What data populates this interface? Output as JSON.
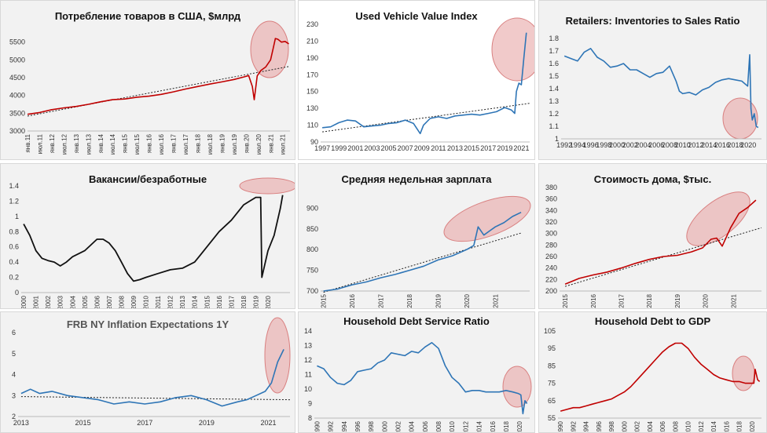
{
  "chart_data": [
    {
      "id": "p1",
      "type": "line",
      "title": "Потребление товаров в США, $млрд",
      "color": "#c00000",
      "trend": true,
      "highlight_color": "#e8a6a6",
      "x_ticks": [
        "янв.11",
        "июл.11",
        "янв.12",
        "июл.12",
        "янв.13",
        "июл.13",
        "янв.14",
        "июл.14",
        "янв.15",
        "июл.15",
        "янв.16",
        "июл.16",
        "янв.17",
        "июл.17",
        "янв.18",
        "июл.18",
        "янв.19",
        "июл.19",
        "янв.20",
        "июл.20",
        "янв.21",
        "июл.21"
      ],
      "x_tick_pos": [
        2011,
        2011.5,
        2012,
        2012.5,
        2013,
        2013.5,
        2014,
        2014.5,
        2015,
        2015.5,
        2016,
        2016.5,
        2017,
        2017.5,
        2018,
        2018.5,
        2019,
        2019.5,
        2020,
        2020.5,
        2021,
        2021.5
      ],
      "xlim": [
        2011,
        2021.8
      ],
      "ylim": [
        3000,
        6000
      ],
      "y_ticks": [
        3000,
        3500,
        4000,
        4500,
        5000,
        5500
      ],
      "x": [
        2011,
        2011.5,
        2012,
        2012.5,
        2013,
        2013.5,
        2014,
        2014.5,
        2015,
        2015.5,
        2016,
        2016.5,
        2017,
        2017.5,
        2018,
        2018.5,
        2019,
        2019.5,
        2019.9,
        2020.1,
        2020.25,
        2020.33,
        2020.45,
        2020.6,
        2020.8,
        2021.0,
        2021.1,
        2021.2,
        2021.3,
        2021.45,
        2021.6,
        2021.75
      ],
      "y": [
        3470,
        3520,
        3600,
        3650,
        3690,
        3750,
        3820,
        3880,
        3900,
        3950,
        3980,
        4030,
        4100,
        4180,
        4250,
        4320,
        4380,
        4450,
        4520,
        4560,
        4250,
        3880,
        4550,
        4700,
        4800,
        5000,
        5300,
        5600,
        5580,
        5500,
        5520,
        5450
      ],
      "trend_start": [
        2011,
        3420
      ],
      "trend_end": [
        2021.8,
        4820
      ]
    },
    {
      "id": "p2",
      "type": "line",
      "title": "Used Vehicle Value Index",
      "color": "#2e75b6",
      "trend": true,
      "highlight_color": "#e8a6a6",
      "x_ticks": [
        "1997",
        "1999",
        "2001",
        "2003",
        "2005",
        "2007",
        "2009",
        "2011",
        "2013",
        "2015",
        "2017",
        "2019",
        "2021"
      ],
      "x_tick_pos": [
        1997,
        1999,
        2001,
        2003,
        2005,
        2007,
        2009,
        2011,
        2013,
        2015,
        2017,
        2019,
        2021
      ],
      "xlim": [
        1996.8,
        2022
      ],
      "ylim": [
        90,
        230
      ],
      "y_ticks": [
        90,
        110,
        130,
        150,
        170,
        190,
        210,
        230
      ],
      "x": [
        1997,
        1998,
        1999,
        2000,
        2001,
        2002,
        2003,
        2004,
        2005,
        2006,
        2007,
        2008,
        2008.8,
        2009.2,
        2010,
        2011,
        2012,
        2013,
        2014,
        2015,
        2016,
        2017,
        2018,
        2019,
        2019.8,
        2020.2,
        2020.4,
        2020.7,
        2021,
        2021.3,
        2021.6
      ],
      "y": [
        107,
        108,
        113,
        116,
        115,
        108,
        109,
        110,
        112,
        113,
        116,
        112,
        100,
        110,
        118,
        120,
        118,
        121,
        122,
        123,
        122,
        124,
        126,
        131,
        128,
        124,
        150,
        160,
        158,
        190,
        220
      ],
      "trend_start": [
        1997,
        102
      ],
      "trend_end": [
        2022,
        136
      ]
    },
    {
      "id": "p3",
      "type": "line",
      "title": "Retailers: Inventories to Sales Ratio",
      "color": "#2e75b6",
      "trend": false,
      "highlight_color": "#e8a6a6",
      "x_ticks": [
        "1992",
        "1994",
        "1996",
        "1998",
        "2000",
        "2002",
        "2004",
        "2006",
        "2008",
        "2010",
        "2012",
        "2014",
        "2016",
        "2018",
        "2020"
      ],
      "x_tick_pos": [
        1992,
        1994,
        1996,
        1998,
        2000,
        2002,
        2004,
        2006,
        2008,
        2010,
        2012,
        2014,
        2016,
        2018,
        2020
      ],
      "xlim": [
        1991.5,
        2022
      ],
      "ylim": [
        1.0,
        1.85
      ],
      "y_ticks": [
        1.0,
        1.1,
        1.2,
        1.3,
        1.4,
        1.5,
        1.6,
        1.7,
        1.8
      ],
      "x": [
        1992,
        1993,
        1994,
        1995,
        1996,
        1997,
        1998,
        1999,
        2000,
        2001,
        2002,
        2003,
        2004,
        2005,
        2006,
        2007,
        2008,
        2009,
        2009.5,
        2010,
        2011,
        2012,
        2013,
        2014,
        2015,
        2016,
        2017,
        2018,
        2019,
        2019.9,
        2020.2,
        2020.4,
        2020.6,
        2020.9,
        2021.2,
        2021.5
      ],
      "y": [
        1.66,
        1.64,
        1.62,
        1.69,
        1.72,
        1.65,
        1.62,
        1.57,
        1.58,
        1.6,
        1.55,
        1.55,
        1.52,
        1.49,
        1.52,
        1.53,
        1.58,
        1.46,
        1.38,
        1.36,
        1.37,
        1.35,
        1.39,
        1.41,
        1.45,
        1.47,
        1.48,
        1.47,
        1.46,
        1.42,
        1.67,
        1.24,
        1.15,
        1.2,
        1.1,
        1.09
      ]
    },
    {
      "id": "p4",
      "type": "line",
      "title": "Вакансии/безработные",
      "color": "#111111",
      "trend": false,
      "highlight_color": "#e8a6a6",
      "x_ticks": [
        "2000",
        "2001",
        "2002",
        "2003",
        "2004",
        "2005",
        "2006",
        "2007",
        "2008",
        "2009",
        "2010",
        "2011",
        "2012",
        "2013",
        "2014",
        "2015",
        "2016",
        "2017",
        "2018",
        "2019",
        "2020"
      ],
      "x_tick_pos": [
        2000,
        2001,
        2002,
        2003,
        2004,
        2005,
        2006,
        2007,
        2008,
        2009,
        2010,
        2011,
        2012,
        2013,
        2014,
        2015,
        2016,
        2017,
        2018,
        2019,
        2020
      ],
      "xlim": [
        1999.8,
        2021.8
      ],
      "ylim": [
        0,
        1.4
      ],
      "y_ticks": [
        0,
        0.2,
        0.4,
        0.6,
        0.8,
        1,
        1.2,
        1.4
      ],
      "x": [
        2000,
        2000.5,
        2001,
        2001.5,
        2002,
        2002.5,
        2003,
        2003.5,
        2004,
        2005,
        2006,
        2006.5,
        2007,
        2007.5,
        2008,
        2008.5,
        2009,
        2009.5,
        2010,
        2011,
        2012,
        2013,
        2014,
        2015,
        2016,
        2017,
        2018,
        2018.5,
        2019,
        2019.4,
        2019.5,
        2020,
        2020.5,
        2021,
        2021.2
      ],
      "y": [
        0.9,
        0.75,
        0.55,
        0.45,
        0.42,
        0.4,
        0.35,
        0.4,
        0.47,
        0.55,
        0.7,
        0.7,
        0.65,
        0.55,
        0.4,
        0.25,
        0.15,
        0.17,
        0.2,
        0.25,
        0.3,
        0.32,
        0.4,
        0.6,
        0.8,
        0.95,
        1.15,
        1.2,
        1.25,
        1.25,
        0.2,
        0.55,
        0.75,
        1.1,
        1.28
      ]
    },
    {
      "id": "p5",
      "type": "line",
      "title": "Средняя недельная зарплата",
      "color": "#2e75b6",
      "trend": true,
      "highlight_color": "#e8a6a6",
      "x_ticks": [
        "2015",
        "2016",
        "2017",
        "2018",
        "2019",
        "2020",
        "2021"
      ],
      "x_tick_pos": [
        2015,
        2016,
        2017,
        2018,
        2019,
        2020,
        2021
      ],
      "xlim": [
        2014.9,
        2022.2
      ],
      "ylim": [
        700,
        950
      ],
      "y_ticks": [
        700,
        750,
        800,
        850,
        900
      ],
      "x": [
        2015,
        2015.5,
        2016,
        2016.5,
        2017,
        2017.5,
        2018,
        2018.5,
        2019,
        2019.5,
        2020,
        2020.25,
        2020.4,
        2020.6,
        2020.8,
        2021,
        2021.3,
        2021.6,
        2021.9
      ],
      "y": [
        700,
        705,
        715,
        722,
        732,
        740,
        750,
        760,
        775,
        785,
        800,
        810,
        855,
        835,
        845,
        855,
        865,
        880,
        890
      ],
      "trend_start": [
        2015,
        697
      ],
      "trend_end": [
        2021.9,
        840
      ]
    },
    {
      "id": "p6",
      "type": "line",
      "title": "Стоимость дома, $тыс.",
      "color": "#c00000",
      "trend": true,
      "highlight_color": "#e8a6a6",
      "x_ticks": [
        "2015",
        "2016",
        "2017",
        "2018",
        "2019",
        "2020",
        "2021"
      ],
      "x_tick_pos": [
        2015,
        2016,
        2017,
        2018,
        2019,
        2020,
        2021
      ],
      "xlim": [
        2014.8,
        2022
      ],
      "ylim": [
        200,
        380
      ],
      "y_ticks": [
        200,
        220,
        240,
        260,
        280,
        300,
        320,
        340,
        360,
        380
      ],
      "x": [
        2015,
        2015.5,
        2016,
        2016.5,
        2017,
        2017.5,
        2018,
        2018.5,
        2019,
        2019.5,
        2019.9,
        2020.2,
        2020.4,
        2020.6,
        2020.9,
        2021.2,
        2021.5,
        2021.8
      ],
      "y": [
        212,
        222,
        228,
        233,
        240,
        248,
        255,
        260,
        262,
        268,
        275,
        290,
        292,
        278,
        310,
        335,
        345,
        358
      ],
      "trend_start": [
        2015,
        208
      ],
      "trend_end": [
        2022,
        310
      ]
    },
    {
      "id": "p7",
      "type": "line",
      "title": "FRB NY Inflation Expectations 1Y",
      "color": "#2e75b6",
      "trend": true,
      "highlight_color": "#e8a6a6",
      "x_ticks": [
        "2013",
        "2015",
        "2017",
        "2019",
        "2021"
      ],
      "x_tick_pos": [
        2013,
        2015,
        2017,
        2019,
        2021
      ],
      "xlim": [
        2012.9,
        2021.7
      ],
      "ylim": [
        2,
        6
      ],
      "y_ticks": [
        2,
        3,
        4,
        5,
        6
      ],
      "x": [
        2013,
        2013.3,
        2013.6,
        2014,
        2014.5,
        2015,
        2015.5,
        2016,
        2016.5,
        2017,
        2017.5,
        2018,
        2018.5,
        2019,
        2019.5,
        2020,
        2020.3,
        2020.6,
        2020.9,
        2021.1,
        2021.3,
        2021.5
      ],
      "y": [
        3.1,
        3.3,
        3.1,
        3.2,
        3.0,
        2.9,
        2.8,
        2.6,
        2.7,
        2.6,
        2.7,
        2.9,
        3.0,
        2.8,
        2.5,
        2.7,
        2.8,
        3.0,
        3.2,
        3.6,
        4.6,
        5.2
      ],
      "trend_start": [
        2013,
        2.95
      ],
      "trend_end": [
        2021.7,
        2.8
      ]
    },
    {
      "id": "p8",
      "type": "line",
      "title": "Household Debt Service Ratio",
      "color": "#2e75b6",
      "trend": false,
      "highlight_color": "#e8a6a6",
      "x_ticks": [
        "1990",
        "1992",
        "1994",
        "1996",
        "1998",
        "2000",
        "2002",
        "2004",
        "2006",
        "2008",
        "2010",
        "2012",
        "2014",
        "2016",
        "2018",
        "2020"
      ],
      "x_tick_pos": [
        1990,
        1992,
        1994,
        1996,
        1998,
        2000,
        2002,
        2004,
        2006,
        2008,
        2010,
        2012,
        2014,
        2016,
        2018,
        2020
      ],
      "xlim": [
        1989.6,
        2021.5
      ],
      "ylim": [
        8,
        14
      ],
      "y_ticks": [
        8,
        9,
        10,
        11,
        12,
        13,
        14
      ],
      "x": [
        1990,
        1991,
        1992,
        1993,
        1994,
        1995,
        1996,
        1997,
        1998,
        1999,
        2000,
        2001,
        2002,
        2003,
        2004,
        2005,
        2006,
        2007,
        2008,
        2009,
        2010,
        2011,
        2012,
        2013,
        2014,
        2015,
        2016,
        2017,
        2018,
        2019,
        2019.8,
        2020.2,
        2020.5,
        2020.8,
        2021.1
      ],
      "y": [
        11.6,
        11.4,
        10.8,
        10.4,
        10.3,
        10.6,
        11.2,
        11.3,
        11.4,
        11.8,
        12.0,
        12.5,
        12.4,
        12.3,
        12.6,
        12.5,
        12.9,
        13.2,
        12.8,
        11.6,
        10.8,
        10.4,
        9.8,
        9.9,
        9.9,
        9.8,
        9.8,
        9.8,
        9.9,
        9.8,
        9.7,
        9.6,
        8.3,
        9.2,
        9.0
      ]
    },
    {
      "id": "p9",
      "type": "line",
      "title": "Household Debt to GDP",
      "color": "#c00000",
      "trend": false,
      "highlight_color": "#e8a6a6",
      "x_ticks": [
        "1990",
        "1992",
        "1994",
        "1996",
        "1998",
        "2000",
        "2002",
        "2004",
        "2006",
        "2008",
        "2010",
        "2012",
        "2014",
        "2016",
        "2018",
        "2020"
      ],
      "x_tick_pos": [
        1990,
        1992,
        1994,
        1996,
        1998,
        2000,
        2002,
        2004,
        2006,
        2008,
        2010,
        2012,
        2014,
        2016,
        2018,
        2020
      ],
      "xlim": [
        1989.6,
        2021.5
      ],
      "ylim": [
        55,
        105
      ],
      "y_ticks": [
        55,
        65,
        75,
        85,
        95,
        105
      ],
      "x": [
        1990,
        1991,
        1992,
        1993,
        1994,
        1995,
        1996,
        1997,
        1998,
        1999,
        2000,
        2001,
        2002,
        2003,
        2004,
        2005,
        2006,
        2007,
        2008,
        2009,
        2010,
        2011,
        2012,
        2013,
        2014,
        2015,
        2016,
        2017,
        2018,
        2019,
        2019.8,
        2020.3,
        2020.5,
        2020.9,
        2021.2
      ],
      "y": [
        59,
        60,
        61,
        61,
        62,
        63,
        64,
        65,
        66,
        68,
        70,
        73,
        77,
        81,
        85,
        89,
        93,
        96,
        98,
        98,
        95,
        90,
        86,
        83,
        80,
        78,
        77,
        76,
        76,
        75,
        75,
        75,
        83,
        77,
        76
      ]
    }
  ]
}
